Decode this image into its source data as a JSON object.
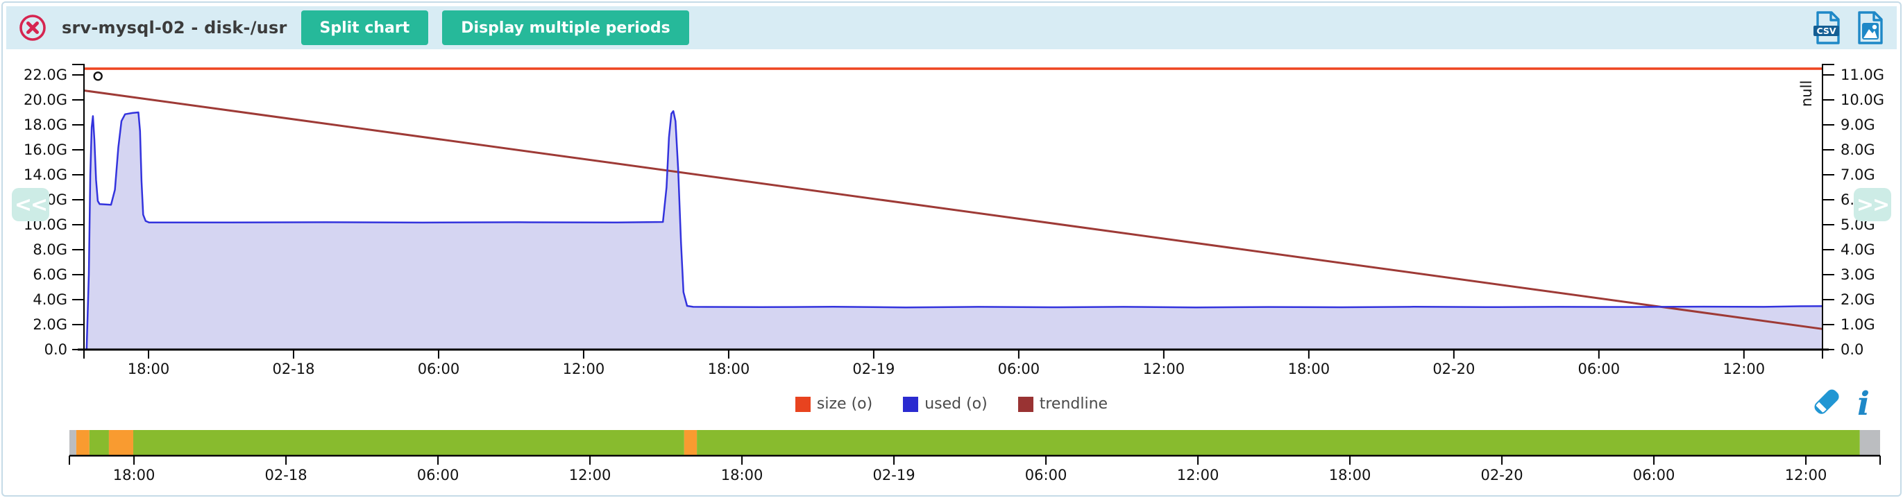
{
  "ui_colors": {
    "accent_teal": "#26b99a",
    "header_bg": "#d8ecf4",
    "panel_border": "#c5dbe7",
    "icon_blue": "#1e88c7",
    "close_red": "#d62550"
  },
  "panel": {
    "header": {
      "title": "srv-mysql-02 - disk-/usr",
      "buttons": [
        {
          "label": "Split chart"
        },
        {
          "label": "Display multiple periods"
        }
      ],
      "export": {
        "csv_text": "CSV"
      }
    },
    "nav": {
      "prev": "<<",
      "next": ">>"
    }
  },
  "legend": {
    "items": [
      {
        "label": "size (o)",
        "color": "#e8431f"
      },
      {
        "label": "used (o)",
        "color": "#2b2bd0"
      },
      {
        "label": "trendline",
        "color": "#993333"
      }
    ]
  },
  "chart_data": {
    "type": "area",
    "title": "srv-mysql-02 - disk-/usr",
    "x_range": [
      0,
      71.92
    ],
    "x_ticks": [
      {
        "h": 2.67,
        "t": "18:00"
      },
      {
        "h": 8.67,
        "t": "02-18"
      },
      {
        "h": 14.67,
        "t": "06:00"
      },
      {
        "h": 20.67,
        "t": "12:00"
      },
      {
        "h": 26.67,
        "t": "18:00"
      },
      {
        "h": 32.67,
        "t": "02-19"
      },
      {
        "h": 38.67,
        "t": "06:00"
      },
      {
        "h": 44.67,
        "t": "12:00"
      },
      {
        "h": 50.67,
        "t": "18:00"
      },
      {
        "h": 56.67,
        "t": "02-20"
      },
      {
        "h": 62.67,
        "t": "06:00"
      },
      {
        "h": 68.67,
        "t": "12:00"
      }
    ],
    "y_left_ticks": [
      {
        "v": 22,
        "t": "22.0G"
      },
      {
        "v": 20,
        "t": "20.0G"
      },
      {
        "v": 18,
        "t": "18.0G"
      },
      {
        "v": 16,
        "t": "16.0G"
      },
      {
        "v": 14,
        "t": "14.0G"
      },
      {
        "v": 12,
        "t": "12.0G"
      },
      {
        "v": 10,
        "t": "10.0G"
      },
      {
        "v": 8,
        "t": "8.0G"
      },
      {
        "v": 6,
        "t": "6.0G"
      },
      {
        "v": 4,
        "t": "4.0G"
      },
      {
        "v": 2,
        "t": "2.0G"
      },
      {
        "v": 0,
        "t": "0.0"
      }
    ],
    "y_right_ticks": [
      {
        "v": 11,
        "t": "11.0G"
      },
      {
        "v": 10,
        "t": "10.0G"
      },
      {
        "v": 9,
        "t": "9.0G"
      },
      {
        "v": 8,
        "t": "8.0G"
      },
      {
        "v": 7,
        "t": "7.0G"
      },
      {
        "v": 6,
        "t": "6.0G"
      },
      {
        "v": 5,
        "t": "5.0G"
      },
      {
        "v": 4,
        "t": "4.0G"
      },
      {
        "v": 3,
        "t": "3.0G"
      },
      {
        "v": 2,
        "t": "2.0G"
      },
      {
        "v": 1,
        "t": "1.0G"
      },
      {
        "v": 0,
        "t": "0.0"
      }
    ],
    "right_axis_label": "null",
    "marker": {
      "h": 0.58,
      "v": 21.9
    },
    "series": [
      {
        "name": "size (o)",
        "type": "line",
        "color": "#ee4520",
        "width": 3.5,
        "points": [
          [
            0,
            22.5
          ],
          [
            71.92,
            22.5
          ]
        ]
      },
      {
        "name": "trendline",
        "type": "line",
        "color": "#9e3a36",
        "width": 3,
        "points": [
          [
            0,
            20.75
          ],
          [
            71.92,
            1.65
          ]
        ]
      },
      {
        "name": "used (o)",
        "type": "area",
        "color": "#3333dd",
        "fill": "#d5d5f2",
        "width": 2.5,
        "points": [
          [
            0.11,
            0
          ],
          [
            0.2,
            6
          ],
          [
            0.26,
            14
          ],
          [
            0.32,
            17.8
          ],
          [
            0.37,
            18.7
          ],
          [
            0.43,
            16.8
          ],
          [
            0.5,
            13.6
          ],
          [
            0.57,
            11.9
          ],
          [
            0.65,
            11.65
          ],
          [
            1.12,
            11.6
          ],
          [
            1.28,
            12.8
          ],
          [
            1.42,
            16.2
          ],
          [
            1.55,
            18.3
          ],
          [
            1.7,
            18.85
          ],
          [
            2.0,
            18.95
          ],
          [
            2.25,
            19.0
          ],
          [
            2.32,
            17.5
          ],
          [
            2.38,
            13.5
          ],
          [
            2.45,
            10.8
          ],
          [
            2.55,
            10.3
          ],
          [
            2.7,
            10.18
          ],
          [
            6,
            10.18
          ],
          [
            10,
            10.2
          ],
          [
            14,
            10.17
          ],
          [
            18,
            10.2
          ],
          [
            22,
            10.18
          ],
          [
            23.95,
            10.22
          ],
          [
            24.1,
            13
          ],
          [
            24.2,
            17
          ],
          [
            24.3,
            18.9
          ],
          [
            24.38,
            19.1
          ],
          [
            24.47,
            18.3
          ],
          [
            24.58,
            14.5
          ],
          [
            24.7,
            8.5
          ],
          [
            24.8,
            4.6
          ],
          [
            24.95,
            3.5
          ],
          [
            25.2,
            3.42
          ],
          [
            28,
            3.4
          ],
          [
            31,
            3.43
          ],
          [
            34,
            3.38
          ],
          [
            37,
            3.42
          ],
          [
            40,
            3.39
          ],
          [
            43,
            3.42
          ],
          [
            46,
            3.38
          ],
          [
            49,
            3.41
          ],
          [
            52,
            3.39
          ],
          [
            55,
            3.43
          ],
          [
            58,
            3.4
          ],
          [
            61,
            3.42
          ],
          [
            64,
            3.41
          ],
          [
            67,
            3.44
          ],
          [
            69.5,
            3.42
          ],
          [
            71.0,
            3.47
          ],
          [
            71.92,
            3.48
          ]
        ]
      }
    ],
    "timeline": {
      "x_range": [
        0,
        71.48
      ],
      "ticks": [
        {
          "h": 2.55,
          "t": "18:00"
        },
        {
          "h": 8.55,
          "t": "02-18"
        },
        {
          "h": 14.55,
          "t": "06:00"
        },
        {
          "h": 20.55,
          "t": "12:00"
        },
        {
          "h": 26.55,
          "t": "18:00"
        },
        {
          "h": 32.55,
          "t": "02-19"
        },
        {
          "h": 38.55,
          "t": "06:00"
        },
        {
          "h": 44.55,
          "t": "12:00"
        },
        {
          "h": 50.55,
          "t": "18:00"
        },
        {
          "h": 56.55,
          "t": "02-20"
        },
        {
          "h": 62.55,
          "t": "06:00"
        },
        {
          "h": 68.55,
          "t": "12:00"
        }
      ],
      "segments": [
        {
          "color": "#bbbdc0",
          "h0": 0,
          "h1": 0.27
        },
        {
          "color": "#f99b30",
          "h0": 0.27,
          "h1": 0.79
        },
        {
          "color": "#88bb2e",
          "h0": 0.79,
          "h1": 1.56
        },
        {
          "color": "#f99b30",
          "h0": 1.56,
          "h1": 2.52
        },
        {
          "color": "#88bb2e",
          "h0": 2.52,
          "h1": 24.27
        },
        {
          "color": "#f99b30",
          "h0": 24.27,
          "h1": 24.77
        },
        {
          "color": "#88bb2e",
          "h0": 24.77,
          "h1": 70.68
        },
        {
          "color": "#bbbdc0",
          "h0": 70.68,
          "h1": 71.48
        }
      ]
    }
  }
}
